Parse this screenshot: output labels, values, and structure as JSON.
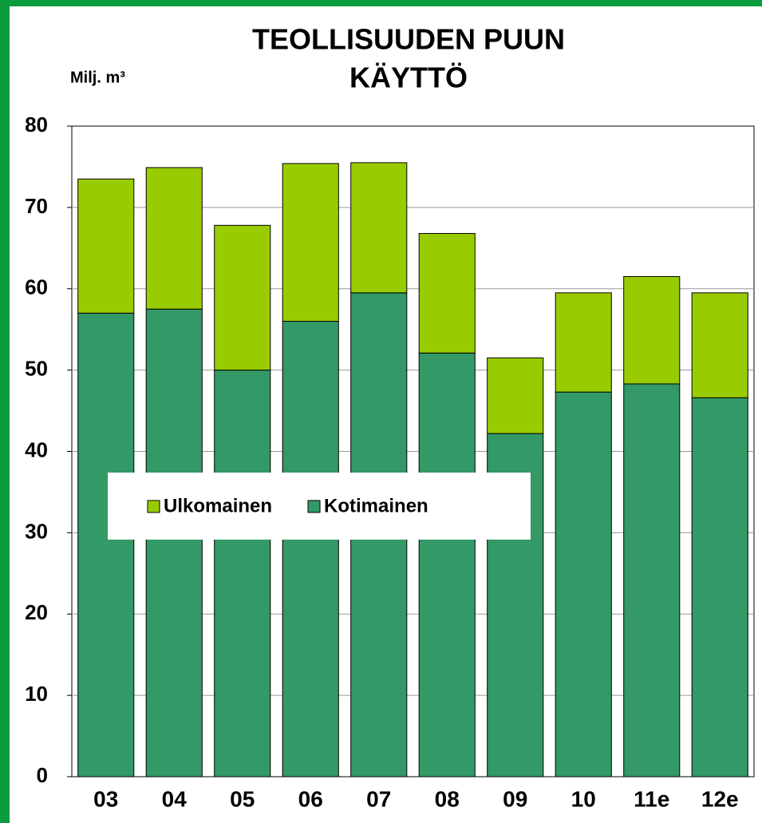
{
  "chart_data": {
    "type": "stacked_bar",
    "title": [
      "TEOLLISUUDEN PUUN",
      "KÄYTTÖ"
    ],
    "y_axis_label": "Milj. m³",
    "categories": [
      "03",
      "04",
      "05",
      "06",
      "07",
      "08",
      "09",
      "10",
      "11e",
      "12e"
    ],
    "series": [
      {
        "name": "Kotimainen",
        "color": "#339966",
        "values": [
          57,
          57.5,
          50,
          56,
          59.5,
          52.1,
          42.2,
          47.3,
          48.3,
          46.6
        ]
      },
      {
        "name": "Ulkomainen",
        "color": "#99cc00",
        "values": [
          16.5,
          17.4,
          17.8,
          19.4,
          16,
          14.7,
          9.3,
          12.2,
          13.2,
          12.9
        ]
      }
    ],
    "ylim": [
      0,
      80
    ],
    "yticks": [
      0,
      10,
      20,
      30,
      40,
      50,
      60,
      70,
      80
    ],
    "grid": true,
    "legend": "center-left"
  }
}
